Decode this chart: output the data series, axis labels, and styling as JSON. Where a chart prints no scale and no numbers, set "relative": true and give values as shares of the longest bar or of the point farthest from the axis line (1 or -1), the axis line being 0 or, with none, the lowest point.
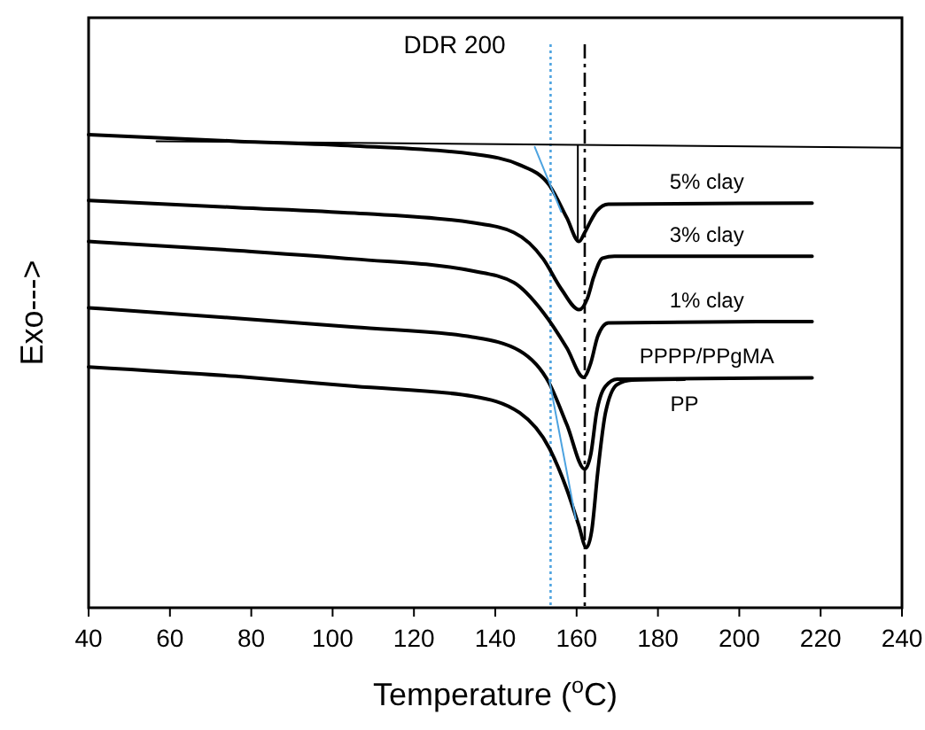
{
  "chart_data": {
    "type": "line",
    "relative": true,
    "xlabel": "Temperature ($^{o}$C)",
    "ylabel": "Exo--->",
    "xlim": [
      40,
      240
    ],
    "xticks": [
      40,
      60,
      80,
      100,
      120,
      140,
      160,
      180,
      200,
      220,
      240
    ],
    "grid": false,
    "marker": "none",
    "line_style": "solid",
    "annotations": [
      "DDR 200"
    ],
    "ref_lines": [
      {
        "axis": "x",
        "value": 153.6,
        "color": "#4da3e0",
        "line_style": "dotted"
      },
      {
        "axis": "x",
        "value": 162,
        "color": "#000000",
        "line_style": "dashed"
      }
    ],
    "series": [
      {
        "name": "5% clay",
        "color": "#000000",
        "x": [
          40,
          76.3,
          105.4,
          134.4,
          146.0,
          153.3,
          157.6,
          160.6,
          162.0,
          163.5,
          165.0,
          167.8,
          217.9
        ],
        "values": [
          1.0,
          0.986,
          0.976,
          0.959,
          0.936,
          0.893,
          0.824,
          0.774,
          0.793,
          0.818,
          0.839,
          0.853,
          0.855
        ]
      },
      {
        "name": "3% clay",
        "color": "#000000",
        "x": [
          40,
          76.3,
          105.4,
          134.4,
          144.6,
          151.8,
          156.2,
          160.6,
          162.7,
          164.2,
          166.4,
          169.3,
          217.9
        ],
        "values": [
          0.861,
          0.846,
          0.834,
          0.814,
          0.793,
          0.737,
          0.674,
          0.63,
          0.655,
          0.699,
          0.739,
          0.743,
          0.743
        ]
      },
      {
        "name": "1% clay",
        "color": "#000000",
        "x": [
          40,
          76.3,
          105.4,
          134.4,
          144.6,
          151.8,
          157.6,
          161.7,
          163.5,
          165.2,
          167.8,
          217.9
        ],
        "values": [
          0.774,
          0.755,
          0.737,
          0.712,
          0.687,
          0.624,
          0.549,
          0.487,
          0.518,
          0.574,
          0.602,
          0.605
        ]
      },
      {
        "name": "PPPP/PPgMA",
        "color": "#000000",
        "x": [
          40,
          76.3,
          105.4,
          134.4,
          146.0,
          153.3,
          157.6,
          162.0,
          163.5,
          164.9,
          167.1,
          170.0,
          217.9
        ],
        "values": [
          0.634,
          0.612,
          0.593,
          0.572,
          0.543,
          0.474,
          0.387,
          0.293,
          0.325,
          0.412,
          0.468,
          0.483,
          0.486
        ]
      },
      {
        "name": "PP",
        "color": "#000000",
        "x": [
          40,
          76.3,
          105.4,
          134.4,
          146.0,
          153.3,
          157.6,
          160.5,
          162.4,
          163.7,
          165.2,
          167.1,
          170.0,
          173.6,
          186.5
        ],
        "values": [
          0.509,
          0.489,
          0.468,
          0.447,
          0.412,
          0.337,
          0.25,
          0.175,
          0.127,
          0.162,
          0.287,
          0.412,
          0.472,
          0.481,
          0.483
        ]
      },
      {
        "color": "#000000",
        "x": [
          56.7,
          240
        ],
        "values": [
          0.986,
          0.972
        ]
      },
      {
        "color": "#000000",
        "x": [
          160.3,
          160.3
        ],
        "values": [
          0.977,
          0.774
        ]
      },
      {
        "color": "#4da3e0",
        "x": [
          149.7,
          156.2
        ],
        "values": [
          0.974,
          0.837
        ]
      },
      {
        "color": "#4da3e0",
        "x": [
          153.3,
          159.8
        ],
        "values": [
          0.481,
          0.187
        ]
      }
    ]
  }
}
